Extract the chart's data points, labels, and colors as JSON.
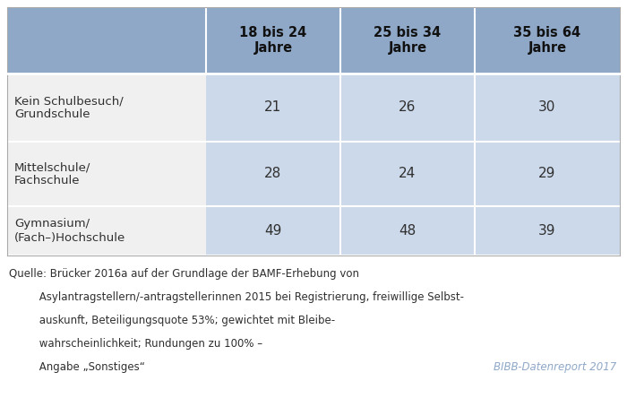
{
  "col_headers": [
    "18 bis 24\nJahre",
    "25 bis 34\nJahre",
    "35 bis 64\nJahre"
  ],
  "row_labels": [
    "Kein Schulbesuch/\nGrundschule",
    "Mittelschule/\nFachschule",
    "Gymnasium/\n(Fach–)Hochschule"
  ],
  "data": [
    [
      21,
      26,
      30
    ],
    [
      28,
      24,
      29
    ],
    [
      49,
      48,
      39
    ]
  ],
  "header_bg": "#8fa8c8",
  "row_bg_light": "#ccd9ea",
  "row_bg_white": "#f0f0f0",
  "text_color": "#2f2f2f",
  "source_lines": [
    "Quelle: Brücker 2016a auf der Grundlage der BAMF-Erhebung von",
    "         Asylantragstellern/-antragstellerinnen 2015 bei Registrierung, freiwillige Selbst-",
    "         auskunft, Beteiligungsquote 53%; gewichtet mit Bleibe-",
    "         wahrscheinlichkeit; Rundungen zu 100% –",
    "         Angabe „Sonstiges“"
  ],
  "brand_text": "BIBB-Datenreport 2017",
  "fig_width": 7.0,
  "fig_height": 4.54,
  "dpi": 100
}
